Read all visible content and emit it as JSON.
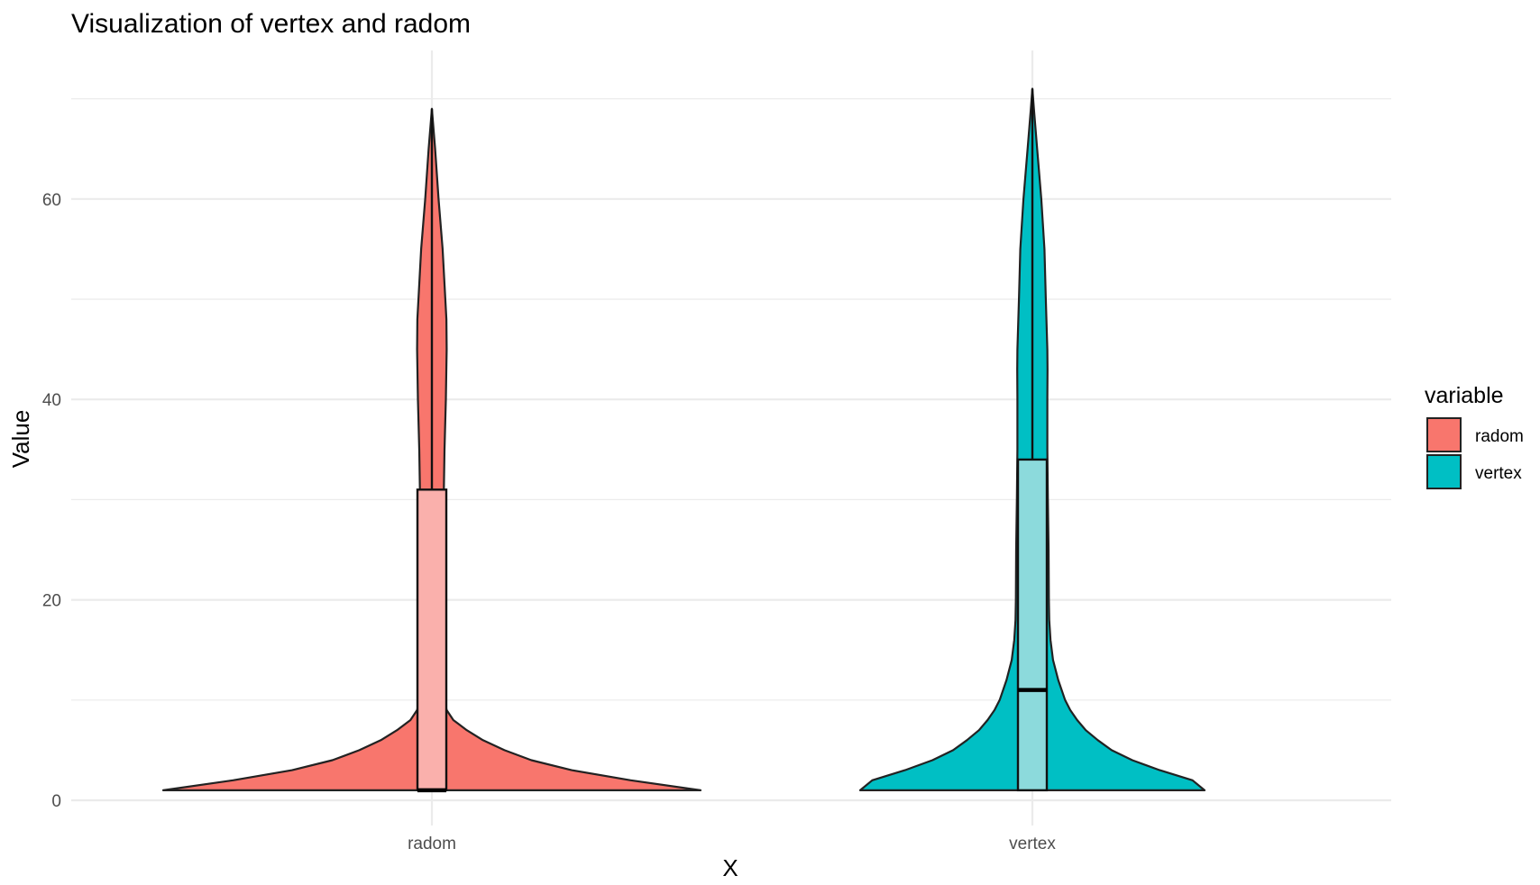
{
  "chart_data": {
    "type": "violin",
    "title": "Visualization of vertex and radom",
    "xlabel": "X",
    "ylabel": "Value",
    "categories": [
      "radom",
      "vertex"
    ],
    "ylim": [
      -1,
      74
    ],
    "yticks": [
      0,
      20,
      40,
      60
    ],
    "grid": true,
    "legend": {
      "title": "variable",
      "position": "right",
      "entries": [
        "radom",
        "vertex"
      ]
    },
    "colors": {
      "radom": "#F8766D",
      "vertex": "#00BFC4",
      "radom_box": "#FAB0AC",
      "vertex_box": "#8CDADC",
      "outline": "#222222",
      "grid": "#EBEBEB"
    },
    "series": [
      {
        "name": "radom",
        "box": {
          "min": 1,
          "q1": 1,
          "median": 1,
          "q3": 31,
          "max": 69
        },
        "density": [
          [
            1,
            1.0
          ],
          [
            2,
            0.74
          ],
          [
            3,
            0.52
          ],
          [
            4,
            0.37
          ],
          [
            5,
            0.27
          ],
          [
            6,
            0.19
          ],
          [
            7,
            0.13
          ],
          [
            8,
            0.08
          ],
          [
            9,
            0.055
          ],
          [
            10,
            0.045
          ],
          [
            12,
            0.038
          ],
          [
            16,
            0.036
          ],
          [
            20,
            0.037
          ],
          [
            25,
            0.04
          ],
          [
            30,
            0.044
          ],
          [
            35,
            0.047
          ],
          [
            40,
            0.052
          ],
          [
            45,
            0.055
          ],
          [
            48,
            0.054
          ],
          [
            50,
            0.05
          ],
          [
            55,
            0.04
          ],
          [
            60,
            0.025
          ],
          [
            65,
            0.012
          ],
          [
            69,
            0.0
          ]
        ]
      },
      {
        "name": "vertex",
        "box": {
          "min": 1,
          "q1": 1,
          "median": 11,
          "q3": 34,
          "max": 71
        },
        "density": [
          [
            1,
            1.0
          ],
          [
            2,
            0.93
          ],
          [
            3,
            0.74
          ],
          [
            4,
            0.58
          ],
          [
            5,
            0.46
          ],
          [
            6,
            0.38
          ],
          [
            7,
            0.31
          ],
          [
            8,
            0.26
          ],
          [
            9,
            0.22
          ],
          [
            10,
            0.19
          ],
          [
            12,
            0.15
          ],
          [
            14,
            0.12
          ],
          [
            16,
            0.105
          ],
          [
            18,
            0.098
          ],
          [
            20,
            0.096
          ],
          [
            25,
            0.094
          ],
          [
            30,
            0.09
          ],
          [
            35,
            0.087
          ],
          [
            40,
            0.087
          ],
          [
            43,
            0.088
          ],
          [
            45,
            0.087
          ],
          [
            50,
            0.078
          ],
          [
            55,
            0.07
          ],
          [
            60,
            0.052
          ],
          [
            65,
            0.028
          ],
          [
            69,
            0.009
          ],
          [
            71,
            0.0
          ]
        ]
      }
    ]
  }
}
